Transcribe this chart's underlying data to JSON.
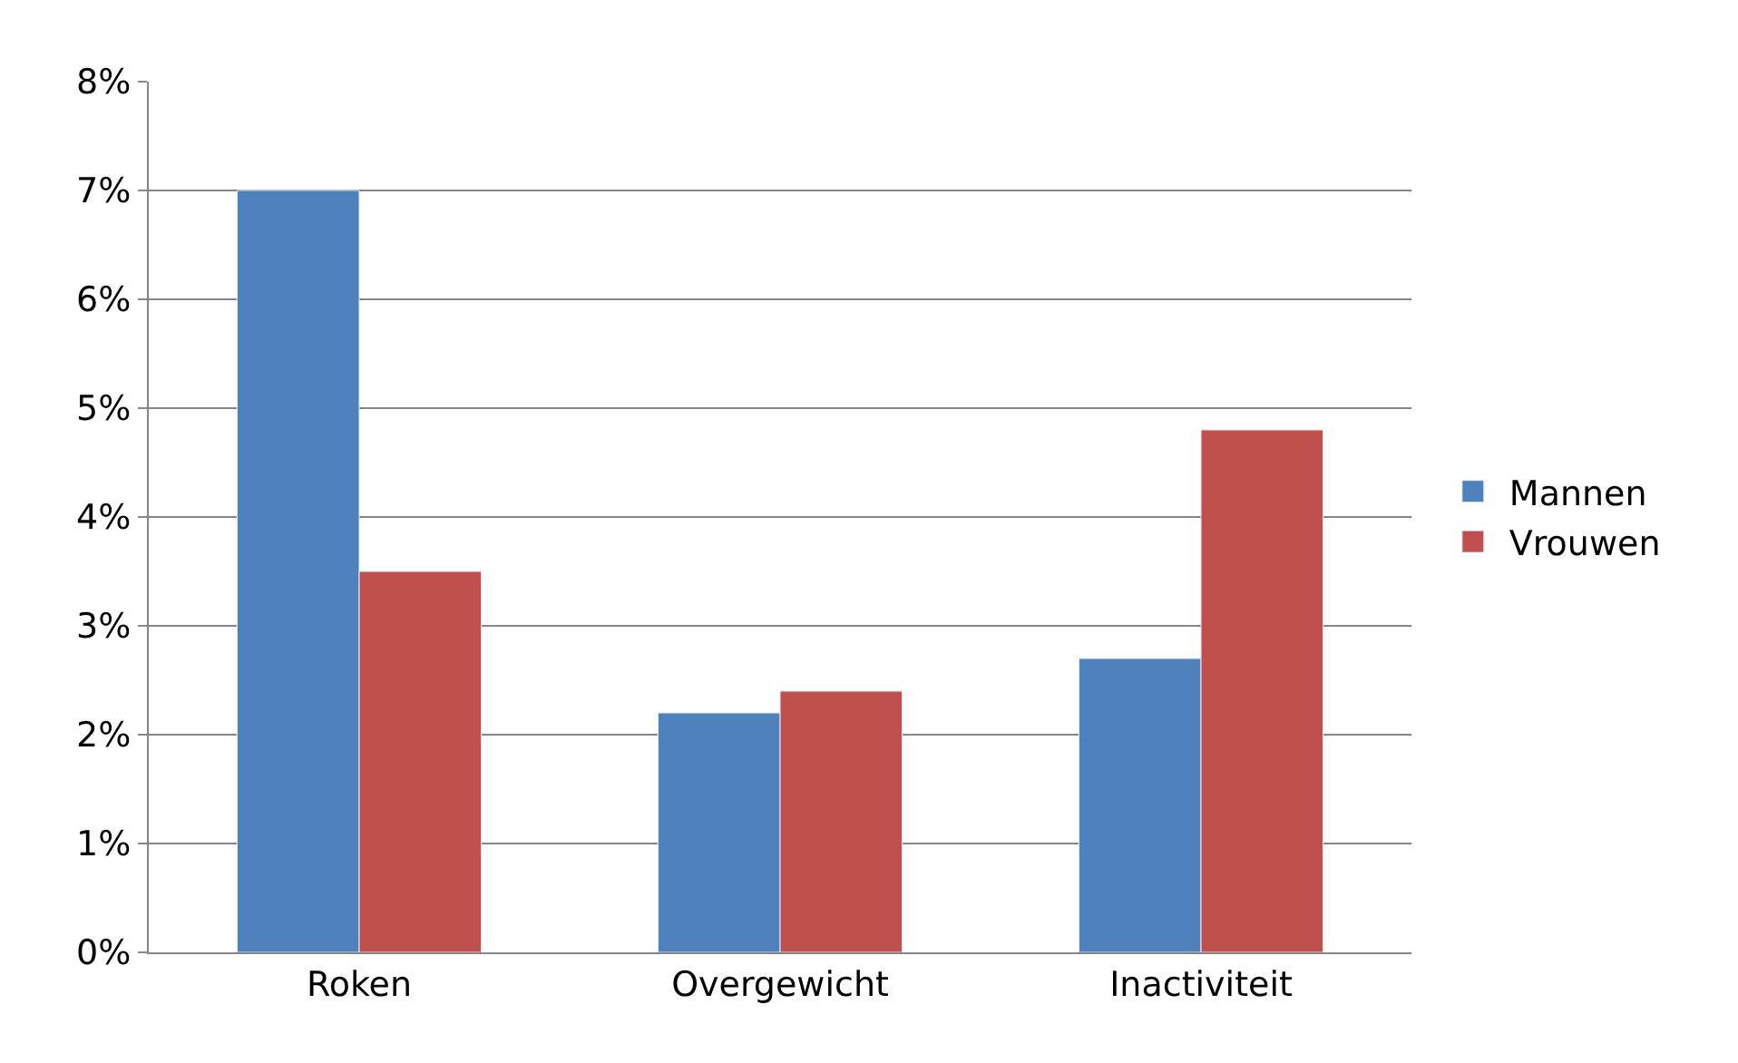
{
  "chart_data": {
    "type": "bar",
    "categories": [
      "Roken",
      "Overgewicht",
      "Inactiviteit"
    ],
    "series": [
      {
        "name": "Mannen",
        "color": "#4f81bd",
        "values": [
          7.0,
          2.2,
          2.7
        ]
      },
      {
        "name": "Vrouwen",
        "color": "#c0504d",
        "values": [
          3.5,
          2.4,
          4.8
        ]
      }
    ],
    "ylim": [
      0,
      8
    ],
    "yticks": [
      {
        "value": 0,
        "label": "0%"
      },
      {
        "value": 1,
        "label": "1%"
      },
      {
        "value": 2,
        "label": "2%"
      },
      {
        "value": 3,
        "label": "3%"
      },
      {
        "value": 4,
        "label": "4%"
      },
      {
        "value": 5,
        "label": "5%"
      },
      {
        "value": 6,
        "label": "6%"
      },
      {
        "value": 7,
        "label": "7%"
      },
      {
        "value": 8,
        "label": "8%"
      }
    ],
    "grid": "y",
    "legend": "right"
  }
}
